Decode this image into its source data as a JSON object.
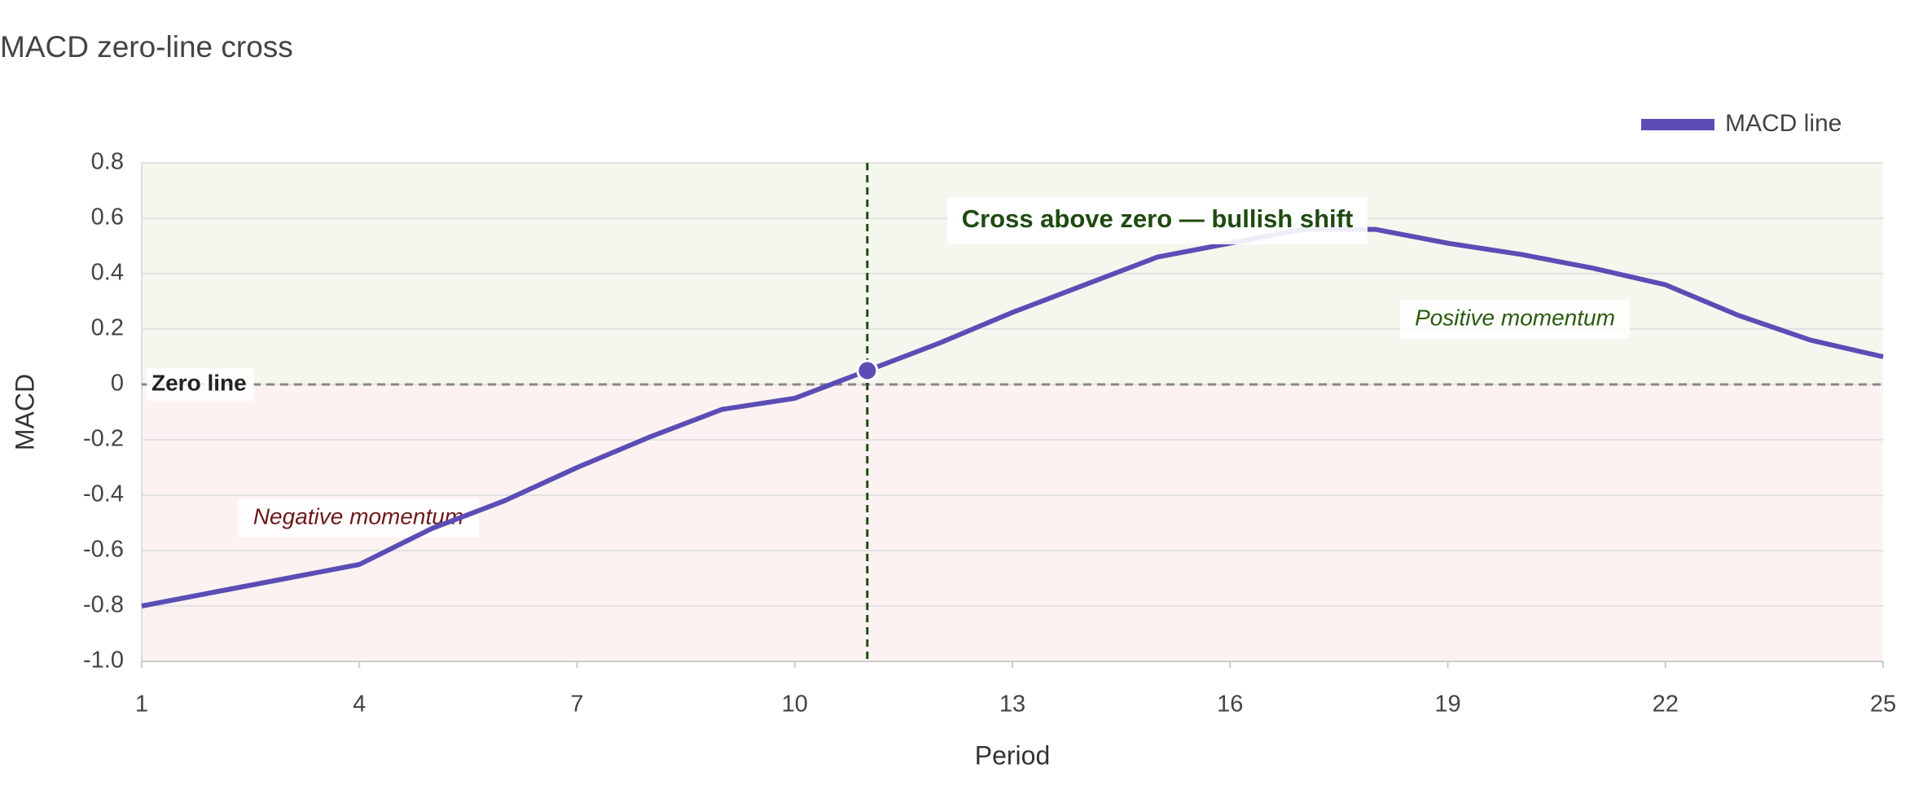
{
  "chart_data": {
    "type": "line",
    "title": "MACD zero-line cross",
    "x_label": "Period",
    "y_label": "MACD",
    "x": [
      1,
      2,
      3,
      4,
      5,
      6,
      7,
      8,
      9,
      10,
      11,
      12,
      13,
      14,
      15,
      16,
      17,
      18,
      19,
      20,
      21,
      22,
      23,
      24,
      25
    ],
    "series": [
      {
        "name": "MACD line",
        "color": "#5b4db5",
        "values": [
          -0.8,
          -0.75,
          -0.7,
          -0.65,
          -0.52,
          -0.42,
          -0.3,
          -0.19,
          -0.09,
          -0.05,
          0.05,
          0.15,
          0.26,
          0.36,
          0.46,
          0.51,
          0.56,
          0.56,
          0.51,
          0.47,
          0.42,
          0.36,
          0.25,
          0.16,
          0.1
        ]
      }
    ],
    "xlim": [
      1,
      25
    ],
    "xticks": [
      1,
      4,
      7,
      10,
      13,
      16,
      19,
      22,
      25
    ],
    "ylim": [
      -1,
      0.8
    ],
    "yticks": [
      {
        "value": -1,
        "label": "-1.0"
      },
      -0.8,
      -0.6,
      -0.4,
      -0.2,
      0,
      0.2,
      0.4,
      0.6,
      0.8
    ],
    "grid": true,
    "legend": "top-right",
    "zero_line": {
      "y": 0,
      "label": "Zero line",
      "color": "#888888"
    },
    "cross": {
      "x": 11,
      "label": "Cross above zero — bullish shift",
      "color": "#1f4a0f"
    },
    "regions": [
      {
        "label": "Positive momentum",
        "color": "#f3f7ee",
        "text_color": "#2d5a12"
      },
      {
        "label": "Negative momentum",
        "color": "#fdf2f2",
        "text_color": "#6b1a1a"
      }
    ]
  }
}
